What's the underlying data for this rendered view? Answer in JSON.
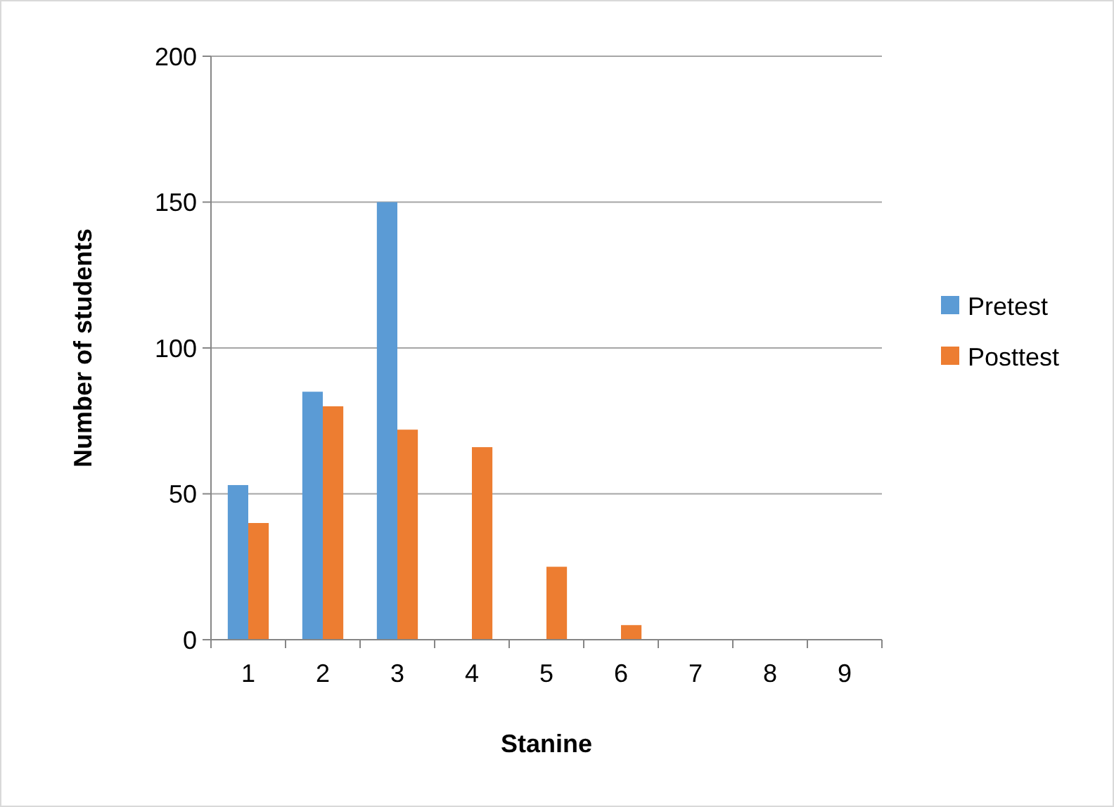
{
  "chart_data": {
    "type": "bar",
    "xlabel": "Stanine",
    "ylabel": "Number of students",
    "categories": [
      "1",
      "2",
      "3",
      "4",
      "5",
      "6",
      "7",
      "8",
      "9"
    ],
    "series": [
      {
        "name": "Pretest",
        "color": "#5b9bd5",
        "values": [
          53,
          85,
          150,
          0,
          0,
          0,
          0,
          0,
          0
        ]
      },
      {
        "name": "Posttest",
        "color": "#ed7d31",
        "values": [
          40,
          80,
          72,
          66,
          25,
          5,
          0,
          0,
          0
        ]
      }
    ],
    "ylim": [
      0,
      200
    ],
    "yticks": [
      0,
      50,
      100,
      150,
      200
    ],
    "grid": "y",
    "legend": "right"
  }
}
